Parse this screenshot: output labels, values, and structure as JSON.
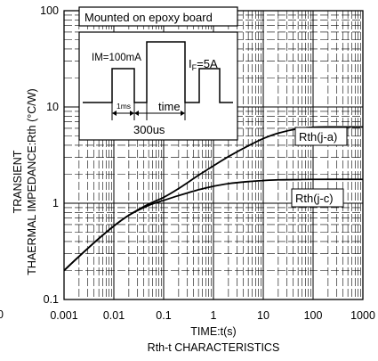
{
  "chart_data": {
    "type": "line",
    "title": "Rth-t CHARACTERISTICS",
    "xlabel": "TIME:t(s)",
    "ylabel_lines": [
      "TRANSIENT",
      "THAERMAL IMPEDANCE:Rth (°C/W)"
    ],
    "x_scale": "log",
    "y_scale": "log",
    "xlim": [
      0.001,
      1000
    ],
    "ylim": [
      0.1,
      100
    ],
    "x_ticks": [
      "0.001",
      "0.01",
      "0.1",
      "1",
      "10",
      "100",
      "1000"
    ],
    "y_ticks": [
      "0.1",
      "1",
      "10",
      "100"
    ],
    "stray_left_label": "0",
    "grid": true,
    "series": [
      {
        "name": "Rth(j-a)",
        "x": [
          0.001,
          0.002,
          0.005,
          0.01,
          0.02,
          0.05,
          0.1,
          0.2,
          0.5,
          1,
          2,
          5,
          10,
          20,
          50,
          100,
          200,
          500,
          1000
        ],
        "y": [
          0.2,
          0.28,
          0.43,
          0.58,
          0.75,
          0.98,
          1.15,
          1.42,
          1.95,
          2.45,
          3.05,
          3.95,
          4.7,
          5.35,
          5.95,
          6.15,
          6.2,
          6.2,
          6.2
        ]
      },
      {
        "name": "Rth(j-c)",
        "x": [
          0.001,
          0.002,
          0.005,
          0.01,
          0.02,
          0.05,
          0.1,
          0.2,
          0.5,
          1,
          2,
          5,
          10,
          20,
          50,
          100,
          1000
        ],
        "y": [
          0.2,
          0.28,
          0.43,
          0.58,
          0.75,
          0.95,
          1.07,
          1.2,
          1.38,
          1.5,
          1.6,
          1.68,
          1.72,
          1.75,
          1.76,
          1.77,
          1.77
        ]
      }
    ],
    "annotations": {
      "condition": "Mounted on epoxy board",
      "pulse_current": "IM=100mA",
      "forward_current_prefix": "I",
      "forward_current_sub": "F",
      "forward_current_value": "=5A",
      "pulse_width": "1ms",
      "time_label": "time",
      "period": "300us"
    }
  }
}
